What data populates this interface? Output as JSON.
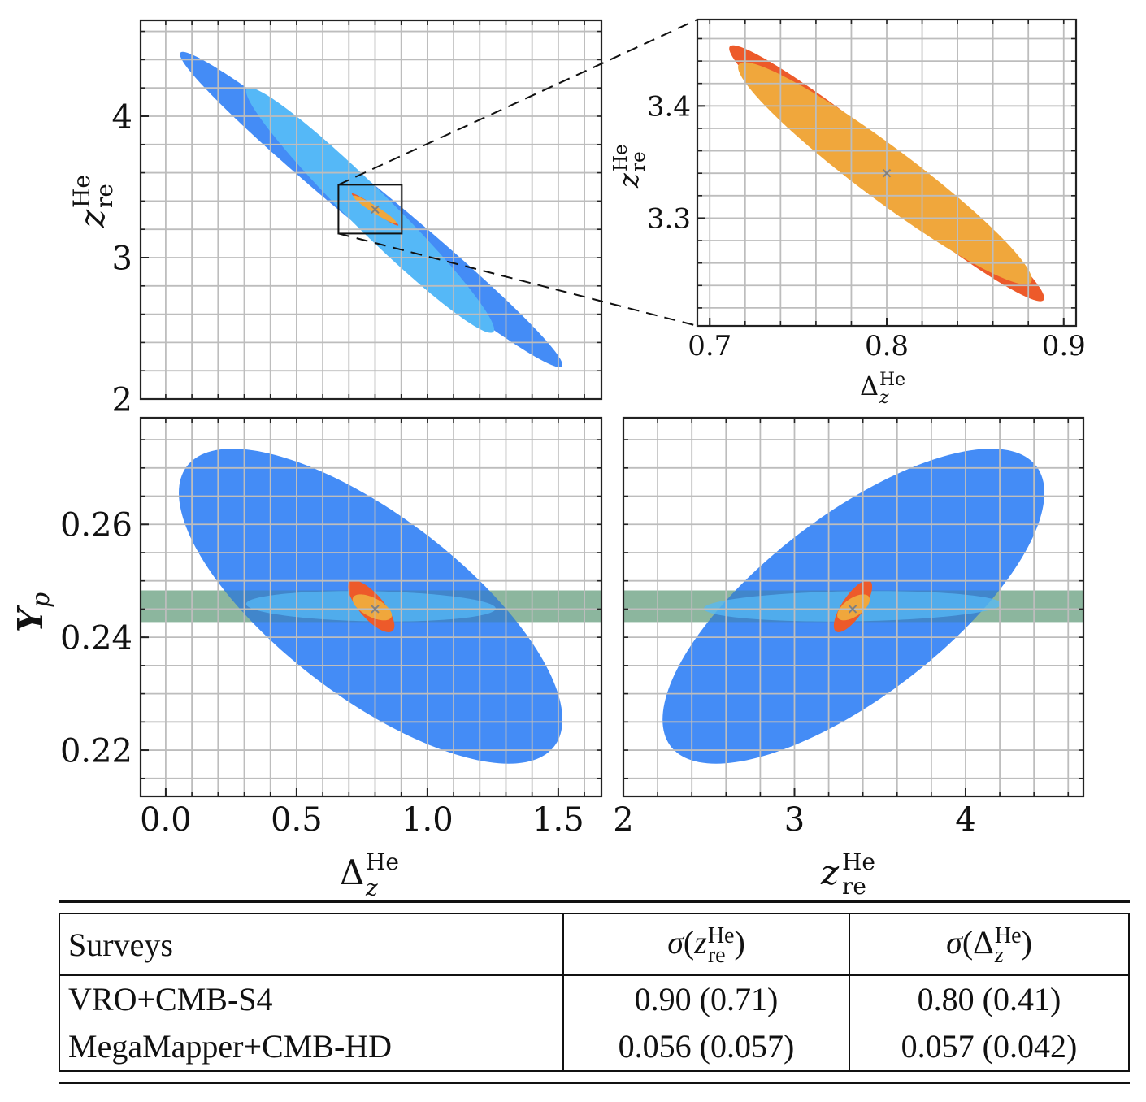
{
  "figure": {
    "colors": {
      "vro_cmbs4_full": "#448cf6",
      "vro_cmbs4_fixed": "#55b8f7",
      "megamapper_cmbhd_full": "#ed5a2a",
      "megamapper_cmbhd_fixed": "#f0a73c",
      "bbn_prior_band": "#b3d4ad",
      "fiducial_marker": "#808080",
      "grid": "#bdbdbd"
    }
  },
  "chart_data": [
    {
      "id": "top-left",
      "type": "scatter",
      "subtype": "fisher-ellipses",
      "xlabel": "Δ_z^He",
      "ylabel": "z_re^He",
      "xlim": [
        -0.096,
        1.665
      ],
      "ylim": [
        2.0,
        4.678
      ],
      "xticks": [],
      "xtick_labels": [],
      "yticks": [
        2,
        3,
        4
      ],
      "ytick_labels": [
        "2",
        "3",
        "4"
      ],
      "grid": true,
      "grid_step_x": 0.1,
      "grid_step_y": 0.2,
      "fiducial": {
        "x": 0.8,
        "y": 3.34
      },
      "ellipses": [
        {
          "name": "VRO+CMB-S4",
          "color_key": "vro_cmbs4_full",
          "cx": 0.785,
          "cy": 3.34,
          "hx": 0.731,
          "hy": 1.115,
          "rho": -0.985
        },
        {
          "name": "VRO+CMB-S4 (fixed)",
          "color_key": "vro_cmbs4_fixed",
          "cx": 0.781,
          "cy": 3.335,
          "hx": 0.474,
          "hy": 0.867,
          "rho": -0.972
        },
        {
          "name": "MegaMapper+CMB-HD",
          "color_key": "megamapper_cmbhd_full",
          "cx": 0.8,
          "cy": 3.34,
          "hx": 0.089,
          "hy": 0.114,
          "rho": -0.975
        },
        {
          "name": "MegaMapper+CMB-HD (fixed)",
          "color_key": "megamapper_cmbhd_fixed",
          "cx": 0.799,
          "cy": 3.34,
          "hx": 0.083,
          "hy": 0.099,
          "rho": -0.955
        }
      ],
      "zoom_box": {
        "x": [
          0.66,
          0.902
        ],
        "y": [
          3.17,
          3.515
        ]
      }
    },
    {
      "id": "top-right-inset",
      "type": "scatter",
      "subtype": "fisher-ellipses",
      "xlabel": "Δ_z^He",
      "ylabel": "z_re^He",
      "xlim": [
        0.693,
        0.907
      ],
      "ylim": [
        3.204,
        3.477
      ],
      "xticks": [
        0.7,
        0.8,
        0.9
      ],
      "xtick_labels": [
        "0.7",
        "0.8",
        "0.9"
      ],
      "yticks": [
        3.3,
        3.4
      ],
      "ytick_labels": [
        "3.3",
        "3.4"
      ],
      "grid": true,
      "grid_step_x": 0.02,
      "grid_step_y": 0.02,
      "fiducial": {
        "x": 0.8,
        "y": 3.34
      },
      "ellipses": [
        {
          "name": "MegaMapper+CMB-HD",
          "color_key": "megamapper_cmbhd_full",
          "cx": 0.8,
          "cy": 3.34,
          "hx": 0.089,
          "hy": 0.114,
          "rho": -0.975
        },
        {
          "name": "MegaMapper+CMB-HD (fixed)",
          "color_key": "megamapper_cmbhd_fixed",
          "cx": 0.799,
          "cy": 3.34,
          "hx": 0.083,
          "hy": 0.099,
          "rho": -0.955
        }
      ]
    },
    {
      "id": "bottom-left",
      "type": "scatter",
      "subtype": "fisher-ellipses",
      "xlabel": "Δ_z^He",
      "ylabel": "Y_p",
      "xlim": [
        -0.096,
        1.665
      ],
      "ylim": [
        0.2118,
        0.2789
      ],
      "xticks": [
        0.0,
        0.5,
        1.0,
        1.5
      ],
      "xtick_labels": [
        "0.0",
        "0.5",
        "1.0",
        "1.5"
      ],
      "yticks": [
        0.22,
        0.24,
        0.26
      ],
      "ytick_labels": [
        "0.22",
        "0.24",
        "0.26"
      ],
      "grid": true,
      "grid_step_x": 0.1,
      "grid_step_y": 0.005,
      "fiducial": {
        "x": 0.8,
        "y": 0.245
      },
      "band": {
        "y": [
          0.2427,
          0.2483
        ],
        "color_key": "bbn_prior_band"
      },
      "ellipses": [
        {
          "name": "VRO+CMB-S4",
          "color_key": "vro_cmbs4_full",
          "cx": 0.783,
          "cy": 0.2455,
          "hx": 0.733,
          "hy": 0.0279,
          "rho": -0.72
        },
        {
          "name": "VRO+CMB-S4 (fixed)",
          "color_key": "vro_cmbs4_fixed",
          "cx": 0.784,
          "cy": 0.2455,
          "hx": 0.477,
          "hy": 0.0027,
          "rho": -0.15,
          "alpha": 0.75
        },
        {
          "name": "MegaMapper+CMB-HD",
          "color_key": "megamapper_cmbhd_full",
          "cx": 0.785,
          "cy": 0.2455,
          "hx": 0.089,
          "hy": 0.0046,
          "rho": -0.75
        },
        {
          "name": "MegaMapper+CMB-HD (fixed)",
          "color_key": "megamapper_cmbhd_fixed",
          "cx": 0.789,
          "cy": 0.2453,
          "hx": 0.075,
          "hy": 0.0023,
          "rho": -0.6
        }
      ]
    },
    {
      "id": "bottom-right",
      "type": "scatter",
      "subtype": "fisher-ellipses",
      "xlabel": "z_re^He",
      "ylabel": "",
      "xlim": [
        2.0,
        4.689
      ],
      "ylim": [
        0.2118,
        0.2789
      ],
      "xticks": [
        2,
        3,
        4
      ],
      "xtick_labels": [
        "2",
        "3",
        "4"
      ],
      "yticks": [],
      "ytick_labels": [],
      "grid": true,
      "grid_step_x": 0.2,
      "grid_step_y": 0.005,
      "fiducial": {
        "x": 3.34,
        "y": 0.245
      },
      "band": {
        "y": [
          0.2427,
          0.2483
        ],
        "color_key": "bbn_prior_band"
      },
      "ellipses": [
        {
          "name": "VRO+CMB-S4",
          "color_key": "vro_cmbs4_full",
          "cx": 3.345,
          "cy": 0.2455,
          "hx": 1.116,
          "hy": 0.0279,
          "rho": 0.72
        },
        {
          "name": "VRO+CMB-S4 (fixed)",
          "color_key": "vro_cmbs4_fixed",
          "cx": 3.34,
          "cy": 0.2455,
          "hx": 0.87,
          "hy": 0.0027,
          "rho": 0.15,
          "alpha": 0.75
        },
        {
          "name": "MegaMapper+CMB-HD",
          "color_key": "megamapper_cmbhd_full",
          "cx": 3.342,
          "cy": 0.2455,
          "hx": 0.112,
          "hy": 0.0046,
          "rho": 0.75
        },
        {
          "name": "MegaMapper+CMB-HD (fixed)",
          "color_key": "megamapper_cmbhd_fixed",
          "cx": 3.345,
          "cy": 0.2453,
          "hx": 0.095,
          "hy": 0.0023,
          "rho": 0.6
        }
      ]
    }
  ],
  "labels": {
    "delta_z_main": "Δ",
    "delta_z_sub": "z",
    "sup_he": "He",
    "z_main": "z",
    "z_sub": "re",
    "yp_main": "Y",
    "yp_sub": "p"
  },
  "table": {
    "headers": {
      "surveys": "Surveys",
      "sigma": "σ",
      "z_main": "z",
      "z_sub": "re",
      "delta_main": "Δ",
      "delta_sub": "z",
      "sup": "He",
      "open": "(",
      "close": ")"
    },
    "rows": [
      {
        "survey": "VRO+CMB-S4",
        "sigma_z": "0.90 (0.71)",
        "sigma_delta": "0.80 (0.41)"
      },
      {
        "survey": "MegaMapper+CMB-HD",
        "sigma_z": "0.056 (0.057)",
        "sigma_delta": "0.057 (0.042)"
      }
    ]
  }
}
